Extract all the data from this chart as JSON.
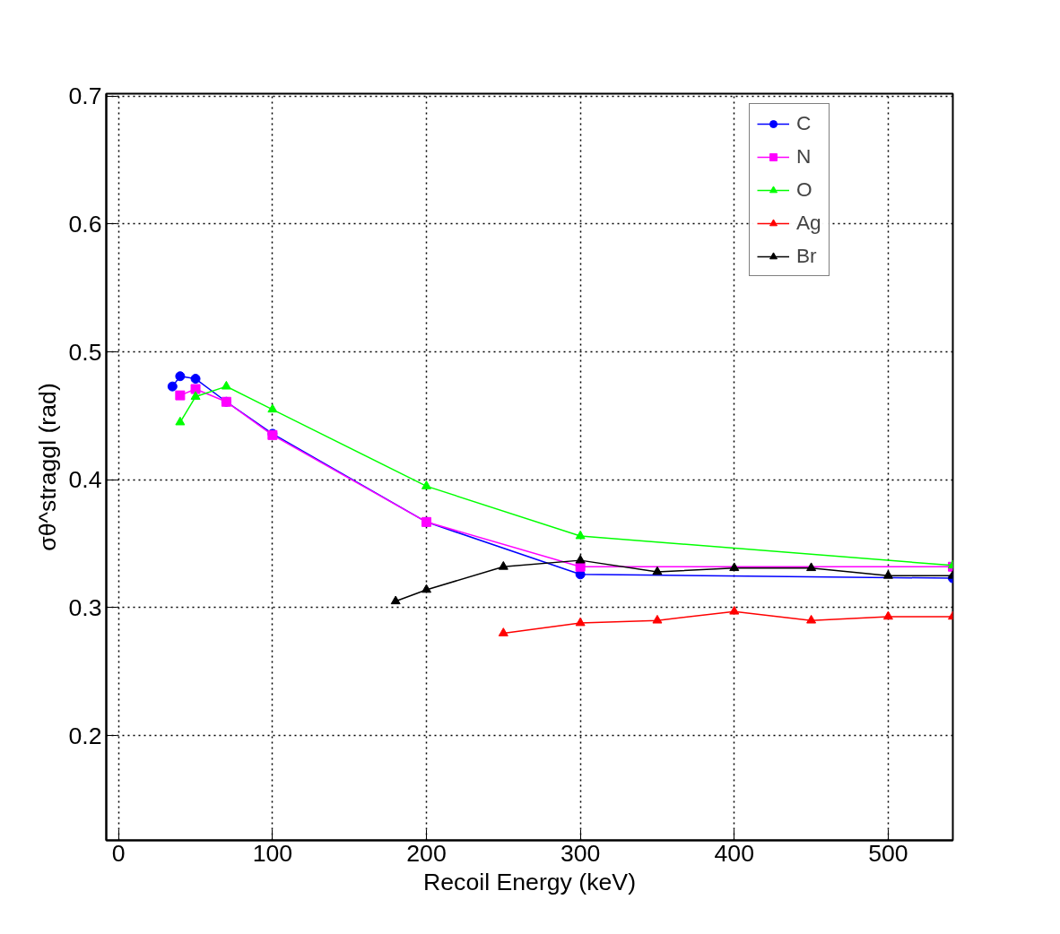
{
  "chart_data": {
    "type": "line",
    "xlabel": "Recoil Energy (keV)",
    "ylabel": "σθ^straggl (rad)",
    "xlim": [
      -8,
      542
    ],
    "ylim": [
      0.118,
      0.702
    ],
    "xticks": [
      0,
      100,
      200,
      300,
      400,
      500
    ],
    "yticks": [
      0.2,
      0.3,
      0.4,
      0.5,
      0.6,
      0.7
    ],
    "grid": true,
    "legend": "top right",
    "series": [
      {
        "name": "C",
        "color": "#0000ff",
        "marker": "circle",
        "x": [
          35,
          40,
          50,
          70,
          100,
          200,
          300,
          542
        ],
        "values": [
          0.473,
          0.481,
          0.479,
          0.461,
          0.436,
          0.367,
          0.326,
          0.323
        ]
      },
      {
        "name": "N",
        "color": "#ff00ff",
        "marker": "square",
        "x": [
          40,
          50,
          70,
          100,
          200,
          300,
          542
        ],
        "values": [
          0.466,
          0.471,
          0.461,
          0.435,
          0.367,
          0.332,
          0.332
        ]
      },
      {
        "name": "O",
        "color": "#00ff00",
        "marker": "triangle",
        "x": [
          40,
          50,
          70,
          100,
          200,
          300,
          542
        ],
        "values": [
          0.445,
          0.465,
          0.473,
          0.455,
          0.395,
          0.356,
          0.333
        ]
      },
      {
        "name": "Ag",
        "color": "#ff0000",
        "marker": "triangle",
        "x": [
          250,
          300,
          350,
          400,
          450,
          500,
          542
        ],
        "values": [
          0.28,
          0.288,
          0.29,
          0.297,
          0.29,
          0.293,
          0.293
        ]
      },
      {
        "name": "Br",
        "color": "#000000",
        "marker": "triangle",
        "x": [
          180,
          200,
          250,
          300,
          350,
          400,
          450,
          500,
          542
        ],
        "values": [
          0.305,
          0.314,
          0.332,
          0.337,
          0.328,
          0.331,
          0.331,
          0.325,
          0.325
        ]
      }
    ]
  }
}
